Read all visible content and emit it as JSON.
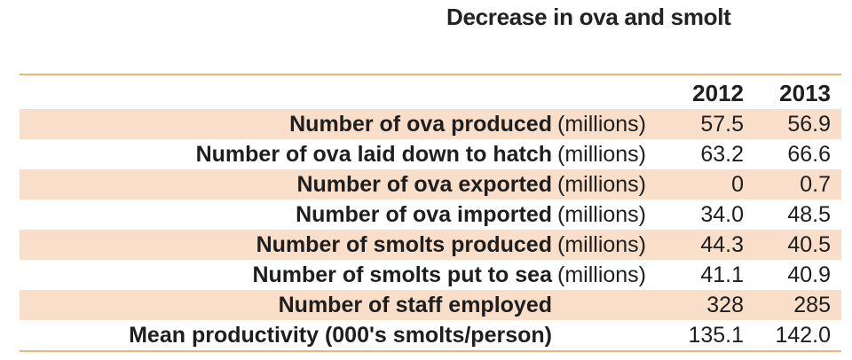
{
  "chart_data": {
    "type": "table",
    "title": "Decrease in ova and smolt",
    "columns": [
      "2012",
      "2013"
    ],
    "rows": [
      {
        "label": "Number of ova produced",
        "unit": "(millions)",
        "values": [
          "57.5",
          "56.9"
        ]
      },
      {
        "label": "Number of ova laid down to hatch",
        "unit": "(millions)",
        "values": [
          "63.2",
          "66.6"
        ]
      },
      {
        "label": "Number of ova exported",
        "unit": "(millions)",
        "values": [
          "0",
          "0.7"
        ]
      },
      {
        "label": "Number of ova imported",
        "unit": "(millions)",
        "values": [
          "34.0",
          "48.5"
        ]
      },
      {
        "label": "Number of smolts produced",
        "unit": "(millions)",
        "values": [
          "44.3",
          "40.5"
        ]
      },
      {
        "label": "Number of smolts put to sea",
        "unit": "(millions)",
        "values": [
          "41.1",
          "40.9"
        ]
      },
      {
        "label": "Number of staff employed",
        "unit": "",
        "values": [
          "328",
          "285"
        ]
      },
      {
        "label": "Mean productivity (000's smolts/person)",
        "unit": "",
        "values": [
          "135.1",
          "142.0"
        ]
      }
    ]
  },
  "colors": {
    "rule": "#e9b877",
    "shade": "#f9dfca",
    "text": "#1e1e1e"
  }
}
